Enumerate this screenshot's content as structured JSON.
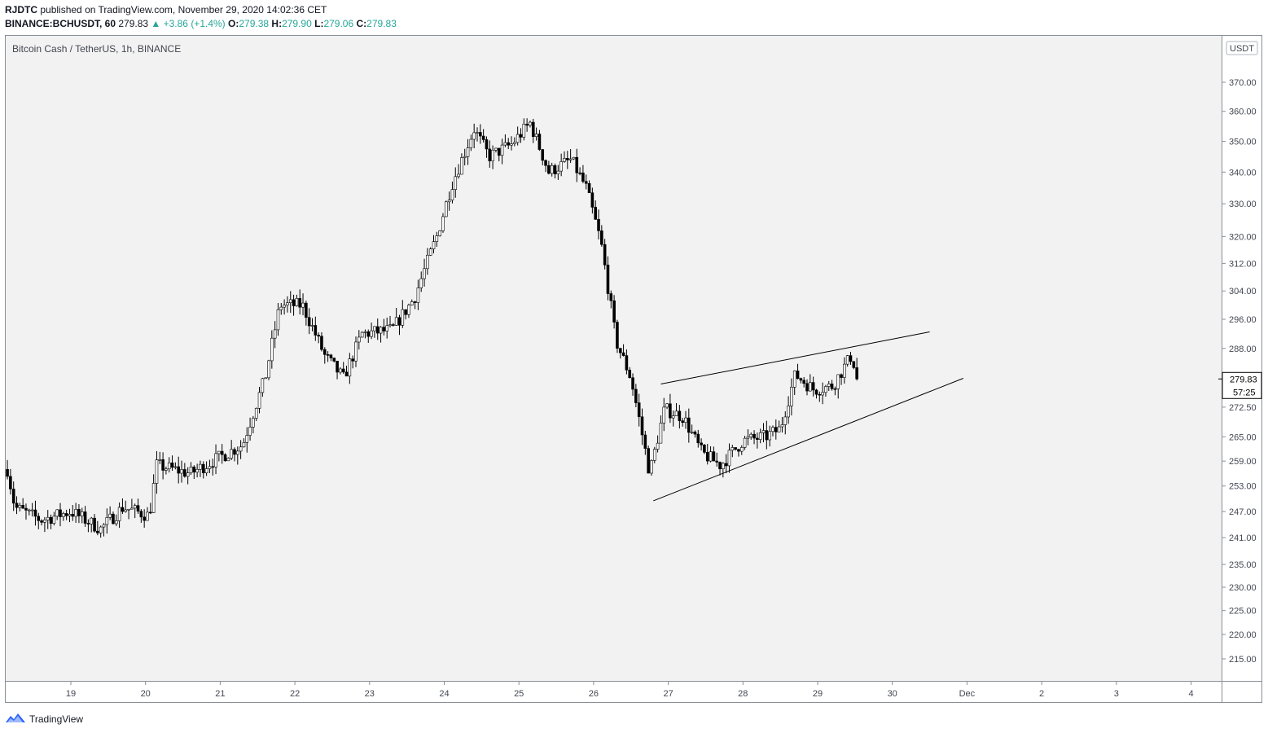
{
  "header": {
    "publisher": "RJDTC",
    "published_text": "published on TradingView.com, November 29, 2020 14:02:36 CET"
  },
  "ohlc": {
    "symbol": "BINANCE:BCHUSDT, 60",
    "last": "279.83",
    "change": "▲ +3.86 (+1.4%)",
    "o_label": "O:",
    "o": "279.38",
    "h_label": "H:",
    "h": "279.90",
    "l_label": "L:",
    "l": "279.06",
    "c_label": "C:",
    "c": "279.83"
  },
  "chart_title": "Bitcoin Cash / TetherUS, 1h, BINANCE",
  "currency_badge": "USDT",
  "price_tag": {
    "price": "279.83",
    "countdown": "57:25"
  },
  "brand": "TradingView",
  "colors": {
    "up_body": "#ffffff",
    "down_body": "#000000",
    "wick": "#000000",
    "plot_bg": "#f2f2f2",
    "price_tag_bg": "#ffffff"
  },
  "chart_data": {
    "type": "candlestick",
    "timeframe": "1h",
    "symbol": "BCHUSDT",
    "scale": "log",
    "ylim": [
      211,
      378
    ],
    "y_ticks": [
      370,
      360,
      350,
      340,
      330,
      320,
      312,
      304,
      296,
      288,
      272.5,
      265,
      259,
      253,
      247,
      241,
      235,
      230,
      225,
      220,
      215
    ],
    "y_tick_labels": [
      "370.00",
      "360.00",
      "350.00",
      "340.00",
      "330.00",
      "320.00",
      "312.00",
      "304.00",
      "296.00",
      "288.00",
      "272.50",
      "265.00",
      "259.00",
      "253.00",
      "247.00",
      "241.00",
      "235.00",
      "230.00",
      "225.00",
      "220.00",
      "215.00"
    ],
    "x_ticks": [
      "19",
      "20",
      "21",
      "22",
      "23",
      "24",
      "25",
      "26",
      "27",
      "28",
      "29",
      "30",
      "Dec",
      "2",
      "3",
      "4"
    ],
    "x_range_days": [
      18.15,
      4.45
    ],
    "anchors": [
      {
        "day": 18.15,
        "price": 257
      },
      {
        "day": 18.25,
        "price": 248
      },
      {
        "day": 18.6,
        "price": 245
      },
      {
        "day": 19.0,
        "price": 247
      },
      {
        "day": 19.4,
        "price": 243
      },
      {
        "day": 19.7,
        "price": 248
      },
      {
        "day": 20.05,
        "price": 246
      },
      {
        "day": 20.15,
        "price": 258
      },
      {
        "day": 20.6,
        "price": 256
      },
      {
        "day": 21.0,
        "price": 260
      },
      {
        "day": 21.3,
        "price": 263
      },
      {
        "day": 21.6,
        "price": 280
      },
      {
        "day": 21.8,
        "price": 300
      },
      {
        "day": 22.1,
        "price": 300
      },
      {
        "day": 22.4,
        "price": 286
      },
      {
        "day": 22.65,
        "price": 280
      },
      {
        "day": 22.9,
        "price": 292
      },
      {
        "day": 23.3,
        "price": 293
      },
      {
        "day": 23.6,
        "price": 302
      },
      {
        "day": 23.9,
        "price": 320
      },
      {
        "day": 24.1,
        "price": 336
      },
      {
        "day": 24.4,
        "price": 354
      },
      {
        "day": 24.6,
        "price": 345
      },
      {
        "day": 24.9,
        "price": 349
      },
      {
        "day": 25.15,
        "price": 356
      },
      {
        "day": 25.4,
        "price": 340
      },
      {
        "day": 25.7,
        "price": 344
      },
      {
        "day": 25.9,
        "price": 335
      },
      {
        "day": 26.1,
        "price": 318
      },
      {
        "day": 26.3,
        "price": 290
      },
      {
        "day": 26.5,
        "price": 280
      },
      {
        "day": 26.75,
        "price": 256
      },
      {
        "day": 26.95,
        "price": 272
      },
      {
        "day": 27.2,
        "price": 270
      },
      {
        "day": 27.45,
        "price": 261
      },
      {
        "day": 27.7,
        "price": 258
      },
      {
        "day": 28.0,
        "price": 264
      },
      {
        "day": 28.3,
        "price": 265
      },
      {
        "day": 28.5,
        "price": 267
      },
      {
        "day": 28.7,
        "price": 281
      },
      {
        "day": 28.95,
        "price": 277
      },
      {
        "day": 29.2,
        "price": 278
      },
      {
        "day": 29.45,
        "price": 286
      },
      {
        "day": 29.55,
        "price": 279.83
      }
    ],
    "trendlines": [
      {
        "name": "upper",
        "points": [
          [
            26.9,
            278.5
          ],
          [
            30.5,
            292.5
          ]
        ]
      },
      {
        "name": "lower",
        "points": [
          [
            26.8,
            249.5
          ],
          [
            30.95,
            280.0
          ]
        ]
      }
    ]
  }
}
